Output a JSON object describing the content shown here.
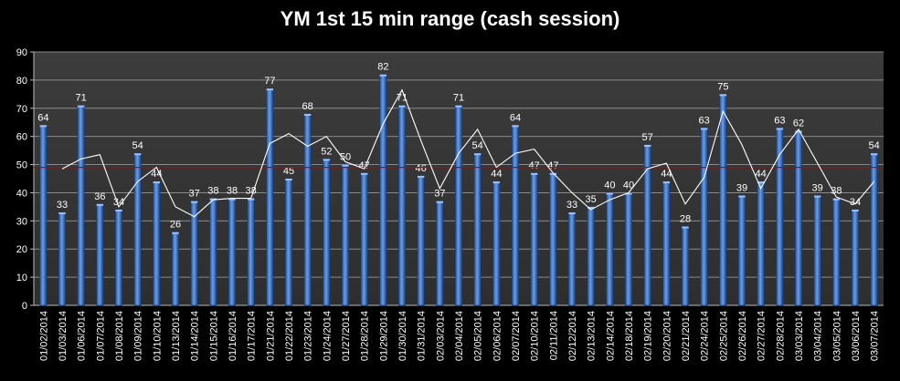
{
  "chart_data": {
    "type": "bar",
    "title": "YM 1st 15 min range (cash session)",
    "ylim": [
      0,
      90
    ],
    "yticks": [
      0,
      10,
      20,
      30,
      40,
      50,
      60,
      70,
      80,
      90
    ],
    "grid": true,
    "categories": [
      "01/02/2014",
      "01/03/2014",
      "01/06/2014",
      "01/07/2014",
      "01/08/2014",
      "01/09/2014",
      "01/10/2014",
      "01/13/2014",
      "01/14/2014",
      "01/15/2014",
      "01/16/2014",
      "01/17/2014",
      "01/21/2014",
      "01/22/2014",
      "01/23/2014",
      "01/24/2014",
      "01/27/2014",
      "01/28/2014",
      "01/29/2014",
      "01/30/2014",
      "01/31/2014",
      "02/03/2014",
      "02/04/2014",
      "02/05/2014",
      "02/06/2014",
      "02/07/2014",
      "02/10/2014",
      "02/11/2014",
      "02/12/2014",
      "02/13/2014",
      "02/14/2014",
      "02/18/2014",
      "02/19/2014",
      "02/20/2014",
      "02/21/2014",
      "02/24/2014",
      "02/25/2014",
      "02/26/2014",
      "02/27/2014",
      "02/28/2014",
      "03/03/2014",
      "03/04/2014",
      "03/05/2014",
      "03/06/2014",
      "03/07/2014"
    ],
    "series": [
      {
        "type": "bar",
        "values": [
          64,
          33,
          71,
          36,
          34,
          54,
          44,
          26,
          37,
          38,
          38,
          38,
          77,
          45,
          68,
          52,
          50,
          47,
          82,
          71,
          46,
          37,
          71,
          54,
          44,
          64,
          47,
          47,
          33,
          35,
          40,
          40,
          57,
          44,
          28,
          63,
          75,
          39,
          44,
          63,
          62,
          39,
          38,
          34,
          54
        ],
        "color": "#4a7fd0"
      },
      {
        "type": "line",
        "values": [
          null,
          48.5,
          52,
          53.5,
          35,
          44,
          49,
          35,
          31.5,
          37.5,
          38,
          38,
          57.5,
          61,
          56.5,
          60,
          51,
          48.5,
          64.5,
          76.5,
          58.5,
          41.5,
          54,
          62.5,
          49,
          54,
          55.5,
          47,
          40,
          34,
          37.5,
          40,
          48.5,
          50.5,
          36,
          45.5,
          69,
          57,
          41.5,
          53.5,
          62.5,
          50.5,
          38.5,
          36,
          44
        ],
        "color": "#ffffff"
      },
      {
        "type": "hline",
        "value": 49,
        "color": "#c00000"
      }
    ]
  }
}
